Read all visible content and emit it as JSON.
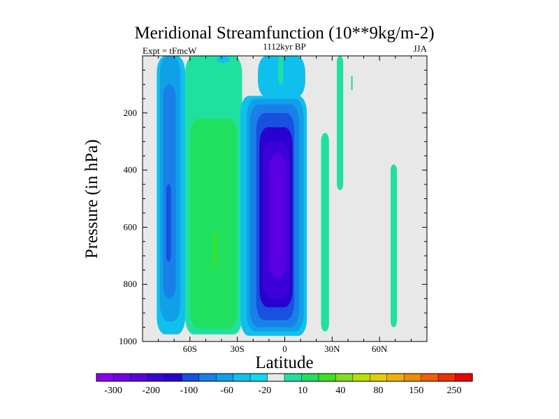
{
  "chart_data": {
    "type": "heatmap",
    "title": "Meridional Streamfunction (10**9kg/m-2)",
    "subtitle_left": "Expt = tFmcW",
    "subtitle_center": "1112kyr BP",
    "subtitle_right": "JJA",
    "xlabel": "Latitude",
    "ylabel": "Pressure (in hPa)",
    "xlim": [
      -90,
      90
    ],
    "ylim": [
      1000,
      0
    ],
    "x_ticks": [
      {
        "value": -60,
        "label": "60S"
      },
      {
        "value": -30,
        "label": "30S"
      },
      {
        "value": 0,
        "label": "0"
      },
      {
        "value": 30,
        "label": "30N"
      },
      {
        "value": 60,
        "label": "60N"
      }
    ],
    "y_ticks": [
      {
        "value": 200,
        "label": "200"
      },
      {
        "value": 400,
        "label": "400"
      },
      {
        "value": 600,
        "label": "600"
      },
      {
        "value": 800,
        "label": "800"
      },
      {
        "value": 1000,
        "label": "1000"
      }
    ],
    "background_color": "#e8e8e8",
    "colorbar": {
      "colors": [
        "#8a00f0",
        "#7200e8",
        "#5a00e0",
        "#3c00d8",
        "#2800d0",
        "#1850e0",
        "#1880e8",
        "#10a0e8",
        "#10c0ec",
        "#10d8f0",
        "#e8e8e8",
        "#20e0a0",
        "#20e060",
        "#40e020",
        "#80e020",
        "#b8e000",
        "#e0d000",
        "#f0b000",
        "#f08c00",
        "#f06000",
        "#f03000",
        "#f00000"
      ],
      "labels": [
        "-300",
        "-200",
        "-100",
        "-60",
        "-20",
        "10",
        "40",
        "80",
        "150",
        "250"
      ]
    },
    "cells": [
      {
        "name": "cell-sh-polar-outer",
        "level": "-20",
        "color": "#10c0ec",
        "bounds": {
          "lat": [
            -81,
            -63
          ],
          "p": [
            0,
            975
          ]
        }
      },
      {
        "name": "cell-sh-polar-mid",
        "level": "-40",
        "color": "#10a0e8",
        "bounds": {
          "lat": [
            -79,
            -66
          ],
          "p": [
            0,
            930
          ]
        }
      },
      {
        "name": "cell-sh-polar-core",
        "level": "-60",
        "color": "#1880e8",
        "bounds": {
          "lat": [
            -77,
            -69
          ],
          "p": [
            100,
            850
          ]
        }
      },
      {
        "name": "cell-sh-polar-inner",
        "level": "-80",
        "color": "#1850e0",
        "bounds": {
          "lat": [
            -75,
            -72
          ],
          "p": [
            450,
            720
          ]
        }
      },
      {
        "name": "cell-sh-midlat-outer",
        "level": "10",
        "color": "#20e0a0",
        "bounds": {
          "lat": [
            -63,
            -27
          ],
          "p": [
            0,
            975
          ]
        }
      },
      {
        "name": "cell-sh-midlat-core",
        "level": "40",
        "color": "#20e060",
        "bounds": {
          "lat": [
            -60,
            -30
          ],
          "p": [
            220,
            955
          ]
        }
      },
      {
        "name": "cell-sh-midlat-peak",
        "level": "60",
        "color": "#40e020",
        "bounds": {
          "lat": [
            -45,
            -43
          ],
          "p": [
            620,
            740
          ]
        }
      },
      {
        "name": "cell-hadley-outer",
        "level": "-20",
        "color": "#10c0ec",
        "bounds": {
          "lat": [
            -28,
            14
          ],
          "p": [
            140,
            980
          ]
        }
      },
      {
        "name": "cell-hadley-l2",
        "level": "-40",
        "color": "#10a0e8",
        "bounds": {
          "lat": [
            -24,
            12
          ],
          "p": [
            150,
            965
          ]
        }
      },
      {
        "name": "cell-hadley-l3",
        "level": "-60",
        "color": "#1880e8",
        "bounds": {
          "lat": [
            -22,
            9
          ],
          "p": [
            170,
            950
          ]
        }
      },
      {
        "name": "cell-hadley-l4",
        "level": "-100",
        "color": "#1850e0",
        "bounds": {
          "lat": [
            -18,
            6
          ],
          "p": [
            200,
            925
          ]
        }
      },
      {
        "name": "cell-hadley-l5",
        "level": "-150",
        "color": "#2800d0",
        "bounds": {
          "lat": [
            -16,
            5
          ],
          "p": [
            250,
            880
          ]
        }
      },
      {
        "name": "cell-hadley-l6",
        "level": "-200",
        "color": "#3c00d8",
        "bounds": {
          "lat": [
            -14,
            3
          ],
          "p": [
            300,
            850
          ]
        }
      },
      {
        "name": "cell-hadley-core",
        "level": "-250",
        "color": "#5a00e0",
        "bounds": {
          "lat": [
            -10,
            1
          ],
          "p": [
            340,
            780
          ]
        }
      },
      {
        "name": "cell-upper-eq",
        "level": "-20",
        "color": "#10c0ec",
        "bounds": {
          "lat": [
            -17,
            13
          ],
          "p": [
            0,
            145
          ]
        }
      },
      {
        "name": "cell-upper-sh",
        "level": "-20",
        "color": "#10c0ec",
        "bounds": {
          "lat": [
            -43,
            -35
          ],
          "p": [
            0,
            25
          ]
        }
      },
      {
        "name": "cell-eq-upper-pos",
        "level": "10",
        "color": "#20e0a0",
        "bounds": {
          "lat": [
            -4,
            -1
          ],
          "p": [
            0,
            100
          ]
        }
      },
      {
        "name": "cell-nh-tropic",
        "level": "10",
        "color": "#20e0a0",
        "bounds": {
          "lat": [
            23,
            28
          ],
          "p": [
            270,
            965
          ]
        }
      },
      {
        "name": "cell-nh-subtropic",
        "level": "10",
        "color": "#20e0a0",
        "bounds": {
          "lat": [
            33,
            37
          ],
          "p": [
            0,
            470
          ]
        }
      },
      {
        "name": "cell-nh-upper",
        "level": "10",
        "color": "#20e0a0",
        "bounds": {
          "lat": [
            42,
            43
          ],
          "p": [
            70,
            120
          ]
        }
      },
      {
        "name": "cell-nh-polar",
        "level": "10",
        "color": "#20e0a0",
        "bounds": {
          "lat": [
            67,
            71
          ],
          "p": [
            380,
            950
          ]
        }
      }
    ]
  }
}
